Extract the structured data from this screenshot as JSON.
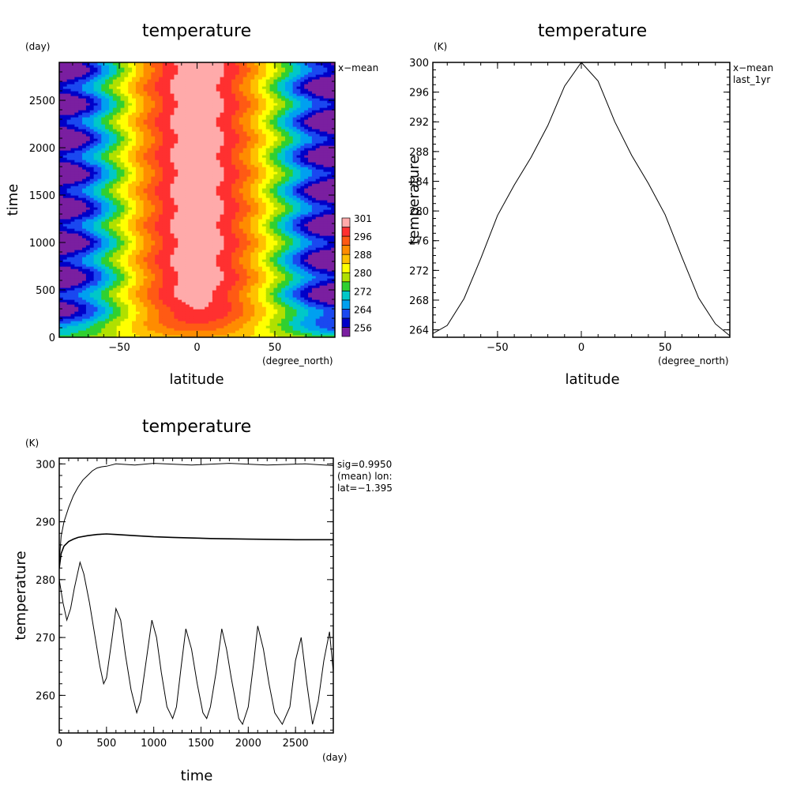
{
  "chart_data": [
    {
      "type": "heatmap",
      "title": "temperature",
      "xlabel": "latitude",
      "xunit": "(degree_north)",
      "ylabel": "time",
      "yunit": "(day)",
      "annotation": "x−mean",
      "xlim": [
        -88.6,
        88.6
      ],
      "ylim": [
        0,
        2900
      ],
      "xticks": [
        -50,
        0,
        50
      ],
      "yticks": [
        0,
        500,
        1000,
        1500,
        2000,
        2500
      ],
      "colorbar_levels": [
        256,
        264,
        272,
        280,
        288,
        296,
        301
      ],
      "colorbar_colors": [
        "#7a1fa0",
        "#0000c8",
        "#1a48f0",
        "#00a0f0",
        "#00c8c8",
        "#30d030",
        "#b0e000",
        "#ffff00",
        "#ffc000",
        "#ff8c00",
        "#ff5a14",
        "#ff3030",
        "#ffaaaa"
      ],
      "field_description": "zonal-mean temperature, maximum ~300 K at equator, minimum ~256 K at poles, seasonal oscillation period ~365 days"
    },
    {
      "type": "line",
      "title": "temperature",
      "xlabel": "latitude",
      "xunit": "(degree_north)",
      "ylabel": "temperature",
      "yunit": "(K)",
      "annotation": [
        "x−mean",
        "last_1yr"
      ],
      "xlim": [
        -88.6,
        88.6
      ],
      "ylim": [
        263,
        300
      ],
      "xticks": [
        -50,
        0,
        50
      ],
      "yticks": [
        264,
        268,
        272,
        276,
        280,
        284,
        288,
        292,
        296,
        300
      ],
      "x": [
        -88.6,
        -80,
        -70,
        -60,
        -50,
        -40,
        -30,
        -20,
        -10,
        0,
        10,
        20,
        30,
        40,
        50,
        60,
        70,
        80,
        88.6
      ],
      "y": [
        263.5,
        264.6,
        268.2,
        273.6,
        279.4,
        283.5,
        287.2,
        291.5,
        296.8,
        300.0,
        297.5,
        292.0,
        287.5,
        283.7,
        279.5,
        273.8,
        268.3,
        264.8,
        263.2
      ]
    },
    {
      "type": "line",
      "title": "temperature",
      "xlabel": "time",
      "xunit": "(day)",
      "ylabel": "temperature",
      "yunit": "(K)",
      "annotation": [
        "sig=0.9950",
        "(mean) lon:",
        "lat=−1.395"
      ],
      "xlim": [
        0,
        2900
      ],
      "ylim": [
        253.5,
        301
      ],
      "xticks": [
        0,
        500,
        1000,
        1500,
        2000,
        2500
      ],
      "yticks": [
        260,
        270,
        280,
        290,
        300
      ],
      "series": [
        {
          "x": [
            0,
            20,
            50,
            100,
            150,
            200,
            250,
            300,
            350,
            400,
            450,
            500,
            550,
            600,
            800,
            1000,
            1400,
            1800,
            2200,
            2600,
            2900
          ],
          "y": [
            283,
            287.5,
            290,
            292.5,
            294.5,
            296,
            297.2,
            298,
            298.8,
            299.3,
            299.5,
            299.6,
            299.8,
            300.0,
            299.8,
            300.1,
            299.8,
            300.1,
            299.8,
            300.0,
            299.7
          ]
        },
        {
          "x": [
            0,
            20,
            50,
            100,
            150,
            200,
            300,
            400,
            500,
            600,
            800,
            1000,
            1200,
            1600,
            2000,
            2500,
            2900
          ],
          "y": [
            282,
            284.5,
            285.8,
            286.6,
            287.0,
            287.3,
            287.6,
            287.8,
            287.9,
            287.8,
            287.6,
            287.4,
            287.3,
            287.1,
            287.0,
            286.9,
            286.9
          ]
        },
        {
          "x": [
            0,
            40,
            80,
            120,
            160,
            220,
            260,
            320,
            380,
            430,
            470,
            500,
            560,
            600,
            650,
            700,
            760,
            820,
            860,
            920,
            980,
            1030,
            1080,
            1140,
            1200,
            1240,
            1290,
            1340,
            1400,
            1460,
            1520,
            1560,
            1600,
            1660,
            1720,
            1770,
            1820,
            1900,
            1940,
            2000,
            2060,
            2100,
            2160,
            2220,
            2280,
            2360,
            2440,
            2500,
            2560,
            2620,
            2680,
            2740,
            2800,
            2860,
            2900
          ],
          "y": [
            280,
            276,
            273,
            275,
            278.5,
            283,
            281,
            276,
            270,
            265,
            262,
            263,
            270,
            275,
            273,
            267,
            261,
            257,
            259,
            266,
            273,
            270,
            264,
            258,
            256,
            258,
            265,
            271.5,
            268,
            262,
            257,
            256,
            258,
            264,
            271.5,
            268,
            263,
            256,
            255,
            258,
            266,
            272,
            268,
            262,
            257,
            255,
            258,
            266,
            270,
            262,
            255,
            259,
            266,
            271,
            264
          ]
        }
      ]
    }
  ]
}
